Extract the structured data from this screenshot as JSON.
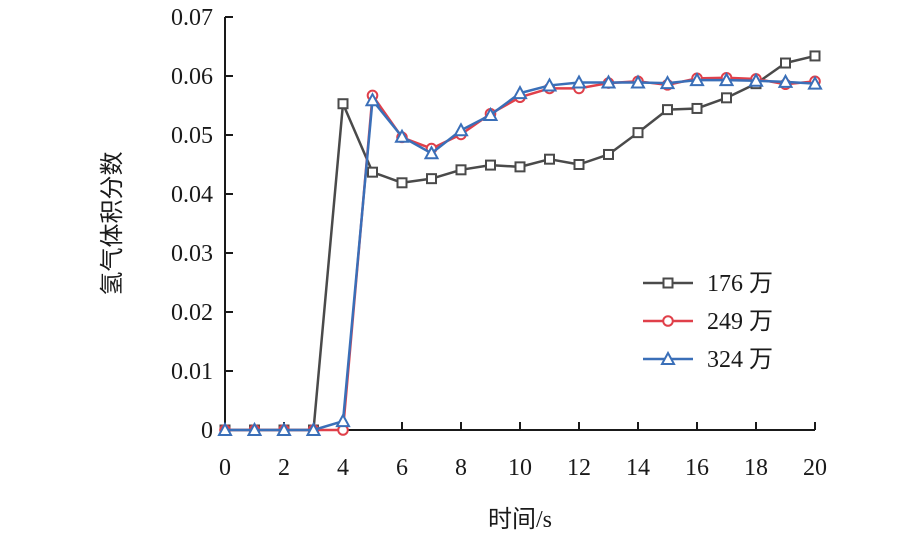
{
  "chart_data": {
    "type": "line",
    "title": "",
    "xlabel": "时间/s",
    "ylabel": "氢气体积分数",
    "xlim": [
      0,
      20
    ],
    "ylim": [
      0,
      0.07
    ],
    "x_ticks": [
      0,
      2,
      4,
      6,
      8,
      10,
      12,
      14,
      16,
      18,
      20
    ],
    "x_tick_labels": [
      "0",
      "2",
      "4",
      "6",
      "8",
      "10",
      "12",
      "14",
      "16",
      "18",
      "20"
    ],
    "y_ticks": [
      0,
      0.01,
      0.02,
      0.03,
      0.04,
      0.05,
      0.06,
      0.07
    ],
    "y_tick_labels": [
      "0",
      "0.01",
      "0.02",
      "0.03",
      "0.04",
      "0.05",
      "0.06",
      "0.07"
    ],
    "grid": false,
    "legend_position": "right",
    "x": [
      0,
      1,
      2,
      3,
      4,
      5,
      6,
      7,
      8,
      9,
      10,
      11,
      12,
      13,
      14,
      15,
      16,
      17,
      18,
      19,
      20
    ],
    "series": [
      {
        "name": "176 万",
        "color": "#4a4a4a",
        "marker": "square",
        "values": [
          0,
          0,
          0,
          0,
          0.0553,
          0.0437,
          0.0419,
          0.0426,
          0.0441,
          0.0449,
          0.0446,
          0.0459,
          0.045,
          0.0467,
          0.0504,
          0.0543,
          0.0545,
          0.0563,
          0.0587,
          0.0622,
          0.0634
        ]
      },
      {
        "name": "249 万",
        "color": "#e0404a",
        "marker": "circle",
        "values": [
          0,
          0,
          0,
          0,
          0,
          0.0567,
          0.0496,
          0.0477,
          0.0501,
          0.0536,
          0.0564,
          0.0579,
          0.0579,
          0.0588,
          0.0591,
          0.0585,
          0.0596,
          0.0597,
          0.0595,
          0.0586,
          0.0591
        ]
      },
      {
        "name": "324 万",
        "color": "#3a6fb8",
        "marker": "triangle",
        "values": [
          0,
          0,
          0,
          0,
          0.0015,
          0.0559,
          0.0497,
          0.0469,
          0.0508,
          0.0534,
          0.0571,
          0.0584,
          0.0589,
          0.0589,
          0.0589,
          0.0588,
          0.0593,
          0.0593,
          0.0592,
          0.059,
          0.0587
        ]
      }
    ]
  }
}
